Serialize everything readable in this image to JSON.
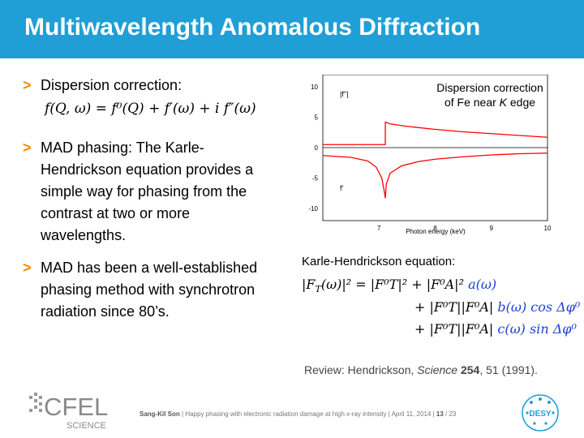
{
  "slide": {
    "title": "Multiwavelength Anomalous Diffraction"
  },
  "bullets": [
    {
      "marker": ">",
      "text": "Dispersion correction:"
    },
    {
      "marker": ">",
      "text": "MAD phasing: The Karle-Hendrickson equation provides a simple way for phasing from the contrast at two or more wavelengths."
    },
    {
      "marker": ">",
      "text": "MAD has been a well-established phasing method with synchrotron radiation since 80’s."
    }
  ],
  "formulas": {
    "dispersion": "f(Q, ω) = f⁰(Q) + f′(ω) + i f″(ω)"
  },
  "chart_data": {
    "type": "line",
    "title_lines": [
      "Dispersion correction",
      "of Fe near K edge"
    ],
    "xlabel": "Photon energy (keV)",
    "ylabel": "",
    "xlim": [
      6.0,
      10.0
    ],
    "ylim": [
      -12,
      12
    ],
    "xticks": [
      "7",
      "8",
      "9",
      "10"
    ],
    "yticks": [
      "10",
      "5",
      "0",
      "-5",
      "-10"
    ],
    "grid": false,
    "series": [
      {
        "name": "|f′′|",
        "color": "#ff0000",
        "x": [
          6.0,
          6.5,
          7.0,
          7.1,
          7.112,
          7.113,
          7.2,
          7.5,
          8.0,
          8.5,
          9.0,
          9.5,
          10.0
        ],
        "y": [
          0.5,
          0.5,
          0.5,
          0.5,
          0.5,
          4.2,
          3.9,
          3.5,
          3.0,
          2.6,
          2.3,
          2.0,
          1.7
        ]
      },
      {
        "name": "f′",
        "color": "#ff0000",
        "x": [
          6.0,
          6.5,
          6.8,
          6.95,
          7.05,
          7.1,
          7.112,
          7.13,
          7.2,
          7.4,
          7.7,
          8.0,
          8.5,
          9.0,
          9.5,
          10.0
        ],
        "y": [
          -1.3,
          -1.6,
          -2.2,
          -3.2,
          -5.0,
          -7.5,
          -8.3,
          -6.0,
          -4.2,
          -3.0,
          -2.3,
          -1.9,
          -1.5,
          -1.2,
          -1.0,
          -0.9
        ]
      }
    ],
    "annotations": [
      "|f′′|",
      "f′"
    ]
  },
  "karle": {
    "label": "Karle-Hendrickson equation:",
    "line1_lhs": "|F",
    "line1_rest": "(ω)|² = |F⁰T|² + |F⁰A|²",
    "a": "a(ω)",
    "line2": "+ |F⁰T||F⁰A|",
    "b": "b(ω) cos Δφ⁰",
    "line3": "+ |F⁰T||F⁰A|",
    "c": "c(ω) sin Δφ⁰"
  },
  "review": {
    "prefix": "Review: Hendrickson, ",
    "journal": "Science",
    "volume": "254",
    "rest": ", 51 (1991)."
  },
  "footer": {
    "author": "Sang-Kil Son",
    "talk": "Happy phasing with electronic radiation damage at high x-ray intensity",
    "date": "April 11, 2014",
    "page": "13",
    "total": "23"
  },
  "logos": {
    "cfel_text": "CFEL",
    "cfel_sub": "SCIENCE",
    "desy_text": "DESY"
  },
  "colors": {
    "header": "#1f9fd6",
    "bullet": "#f28c00",
    "equation_blue": "#1a3fd6",
    "curve": "#ff0000"
  }
}
